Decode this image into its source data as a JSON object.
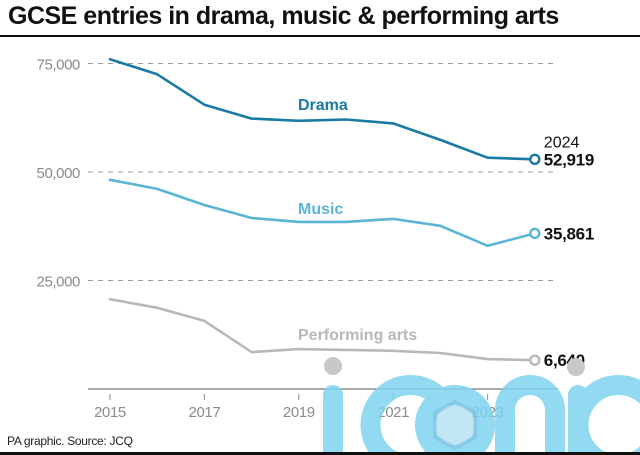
{
  "header": {
    "title": "GCSE entries in drama, music & performing arts"
  },
  "footer": {
    "source": "PA graphic. Source: JCQ"
  },
  "watermark": {
    "text": "iconic",
    "color": "#7fd3f0"
  },
  "chart_data": {
    "type": "line",
    "title": "GCSE entries in drama, music & performing arts",
    "xlabel": "",
    "ylabel": "",
    "x": [
      2015,
      2016,
      2017,
      2018,
      2019,
      2020,
      2021,
      2022,
      2023,
      2024
    ],
    "xticks": [
      2015,
      2017,
      2019,
      2021,
      2023
    ],
    "xtick_labels": [
      "2015",
      "2017",
      "2019",
      "2021",
      "2023"
    ],
    "yticks": [
      25000,
      50000,
      75000
    ],
    "ytick_labels": [
      "25,000",
      "50,000",
      "75,000"
    ],
    "ylim": [
      0,
      80000
    ],
    "grid": "horizontal dashed",
    "legend": "inline labels",
    "end_year_label": "2024",
    "series": [
      {
        "name": "Drama",
        "color": "#1a7aa3",
        "values": [
          76000,
          72500,
          65500,
          62300,
          61800,
          62100,
          61200,
          57400,
          53300,
          52919
        ],
        "end_label": "52,919"
      },
      {
        "name": "Music",
        "color": "#5ab4d6",
        "values": [
          48200,
          46100,
          42400,
          39400,
          38500,
          38500,
          39200,
          37600,
          33000,
          35861
        ],
        "end_label": "35,861"
      },
      {
        "name": "Performing arts",
        "color": "#b8b8b8",
        "values": [
          20700,
          18700,
          15700,
          8500,
          9200,
          9000,
          8800,
          8300,
          6900,
          6640
        ],
        "end_label": "6,640"
      }
    ]
  }
}
